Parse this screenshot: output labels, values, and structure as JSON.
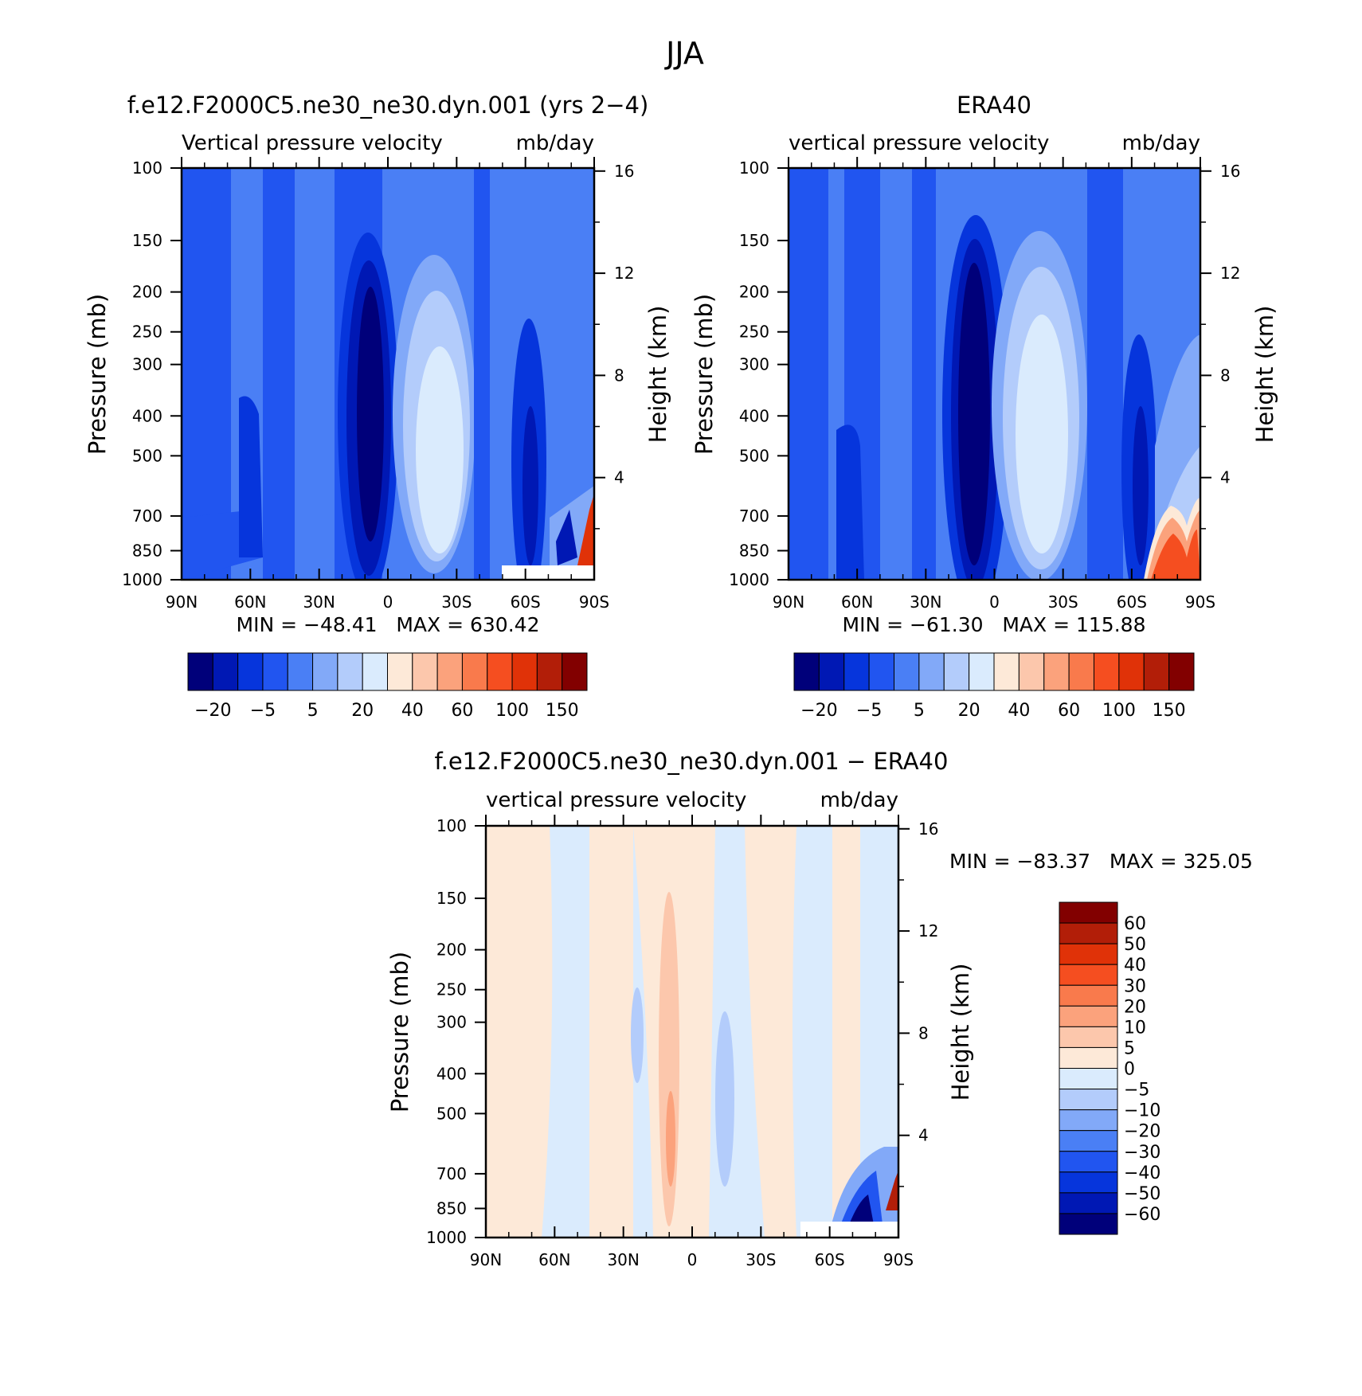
{
  "figure": {
    "title": "JJA"
  },
  "chart_data": [
    {
      "type": "heatmap",
      "title": "f.e12.F2000C5.ne30_ne30.dyn.001 (yrs 2−4)",
      "subtitle_left": "Vertical pressure velocity",
      "subtitle_right": "mb/day",
      "ylabel": "Pressure (mb)",
      "y2label": "Height (km)",
      "x_ticks": [
        "90N",
        "60N",
        "30N",
        "0",
        "30S",
        "60S",
        "90S"
      ],
      "x_values": [
        90,
        60,
        30,
        0,
        -30,
        -60,
        -90
      ],
      "y_ticks": [
        "100",
        "150",
        "200",
        "250",
        "300",
        "400",
        "500",
        "700",
        "850",
        "1000"
      ],
      "y_values": [
        100,
        150,
        200,
        250,
        300,
        400,
        500,
        700,
        850,
        1000
      ],
      "y_scale": "log",
      "ylim": [
        1000,
        100
      ],
      "y2_ticks": [
        "16",
        "12",
        "8",
        "4"
      ],
      "y2_values": [
        16,
        12,
        8,
        4
      ],
      "stats": "MIN = −48.41   MAX = 630.42",
      "min": -48.41,
      "max": 630.42,
      "colorbar_labels": [
        "−20",
        "−5",
        "5",
        "20",
        "40",
        "60",
        "100",
        "150"
      ],
      "colorbar_orientation": "horizontal"
    },
    {
      "type": "heatmap",
      "title": "ERA40",
      "subtitle_left": "vertical pressure velocity",
      "subtitle_right": "mb/day",
      "ylabel": "Pressure (mb)",
      "y2label": "Height (km)",
      "x_ticks": [
        "90N",
        "60N",
        "30N",
        "0",
        "30S",
        "60S",
        "90S"
      ],
      "x_values": [
        90,
        60,
        30,
        0,
        -30,
        -60,
        -90
      ],
      "y_ticks": [
        "100",
        "150",
        "200",
        "250",
        "300",
        "400",
        "500",
        "700",
        "850",
        "1000"
      ],
      "y_values": [
        100,
        150,
        200,
        250,
        300,
        400,
        500,
        700,
        850,
        1000
      ],
      "y_scale": "log",
      "ylim": [
        1000,
        100
      ],
      "y2_ticks": [
        "16",
        "12",
        "8",
        "4"
      ],
      "y2_values": [
        16,
        12,
        8,
        4
      ],
      "stats": "MIN = −61.30   MAX = 115.88",
      "min": -61.3,
      "max": 115.88,
      "colorbar_labels": [
        "−20",
        "−5",
        "5",
        "20",
        "40",
        "60",
        "100",
        "150"
      ],
      "colorbar_orientation": "horizontal"
    },
    {
      "type": "heatmap",
      "title": "f.e12.F2000C5.ne30_ne30.dyn.001 − ERA40",
      "subtitle_left": "vertical pressure velocity",
      "subtitle_right": "mb/day",
      "ylabel": "Pressure (mb)",
      "y2label": "Height (km)",
      "x_ticks": [
        "90N",
        "60N",
        "30N",
        "0",
        "30S",
        "60S",
        "90S"
      ],
      "x_values": [
        90,
        60,
        30,
        0,
        -30,
        -60,
        -90
      ],
      "y_ticks": [
        "100",
        "150",
        "200",
        "250",
        "300",
        "400",
        "500",
        "700",
        "850",
        "1000"
      ],
      "y_values": [
        100,
        150,
        200,
        250,
        300,
        400,
        500,
        700,
        850,
        1000
      ],
      "y_scale": "log",
      "ylim": [
        1000,
        100
      ],
      "y2_ticks": [
        "16",
        "12",
        "8",
        "4"
      ],
      "y2_values": [
        16,
        12,
        8,
        4
      ],
      "stats": "MIN = −83.37   MAX = 325.05",
      "min": -83.37,
      "max": 325.05,
      "colorbar_labels": [
        "60",
        "50",
        "40",
        "30",
        "20",
        "10",
        "5",
        "0",
        "−5",
        "−10",
        "−20",
        "−30",
        "−40",
        "−50",
        "−60"
      ],
      "colorbar_orientation": "vertical"
    }
  ],
  "colors": {
    "abs_scale": [
      "#00007a",
      "#0018b4",
      "#0635dc",
      "#2155f0",
      "#4a7ff5",
      "#82a9f8",
      "#b3ccfb",
      "#daebfd",
      "#fde9d8",
      "#fcc7ac",
      "#fba27c",
      "#f97a4c",
      "#f54e20",
      "#e03208",
      "#b21e08",
      "#820000"
    ],
    "diff_scale": [
      "#820000",
      "#b21e08",
      "#e03208",
      "#f54e20",
      "#f97a4c",
      "#fba27c",
      "#fcc7ac",
      "#fde9d8",
      "#daebfd",
      "#b3ccfb",
      "#82a9f8",
      "#4a7ff5",
      "#2155f0",
      "#0635dc",
      "#0018b4",
      "#00007a"
    ]
  }
}
